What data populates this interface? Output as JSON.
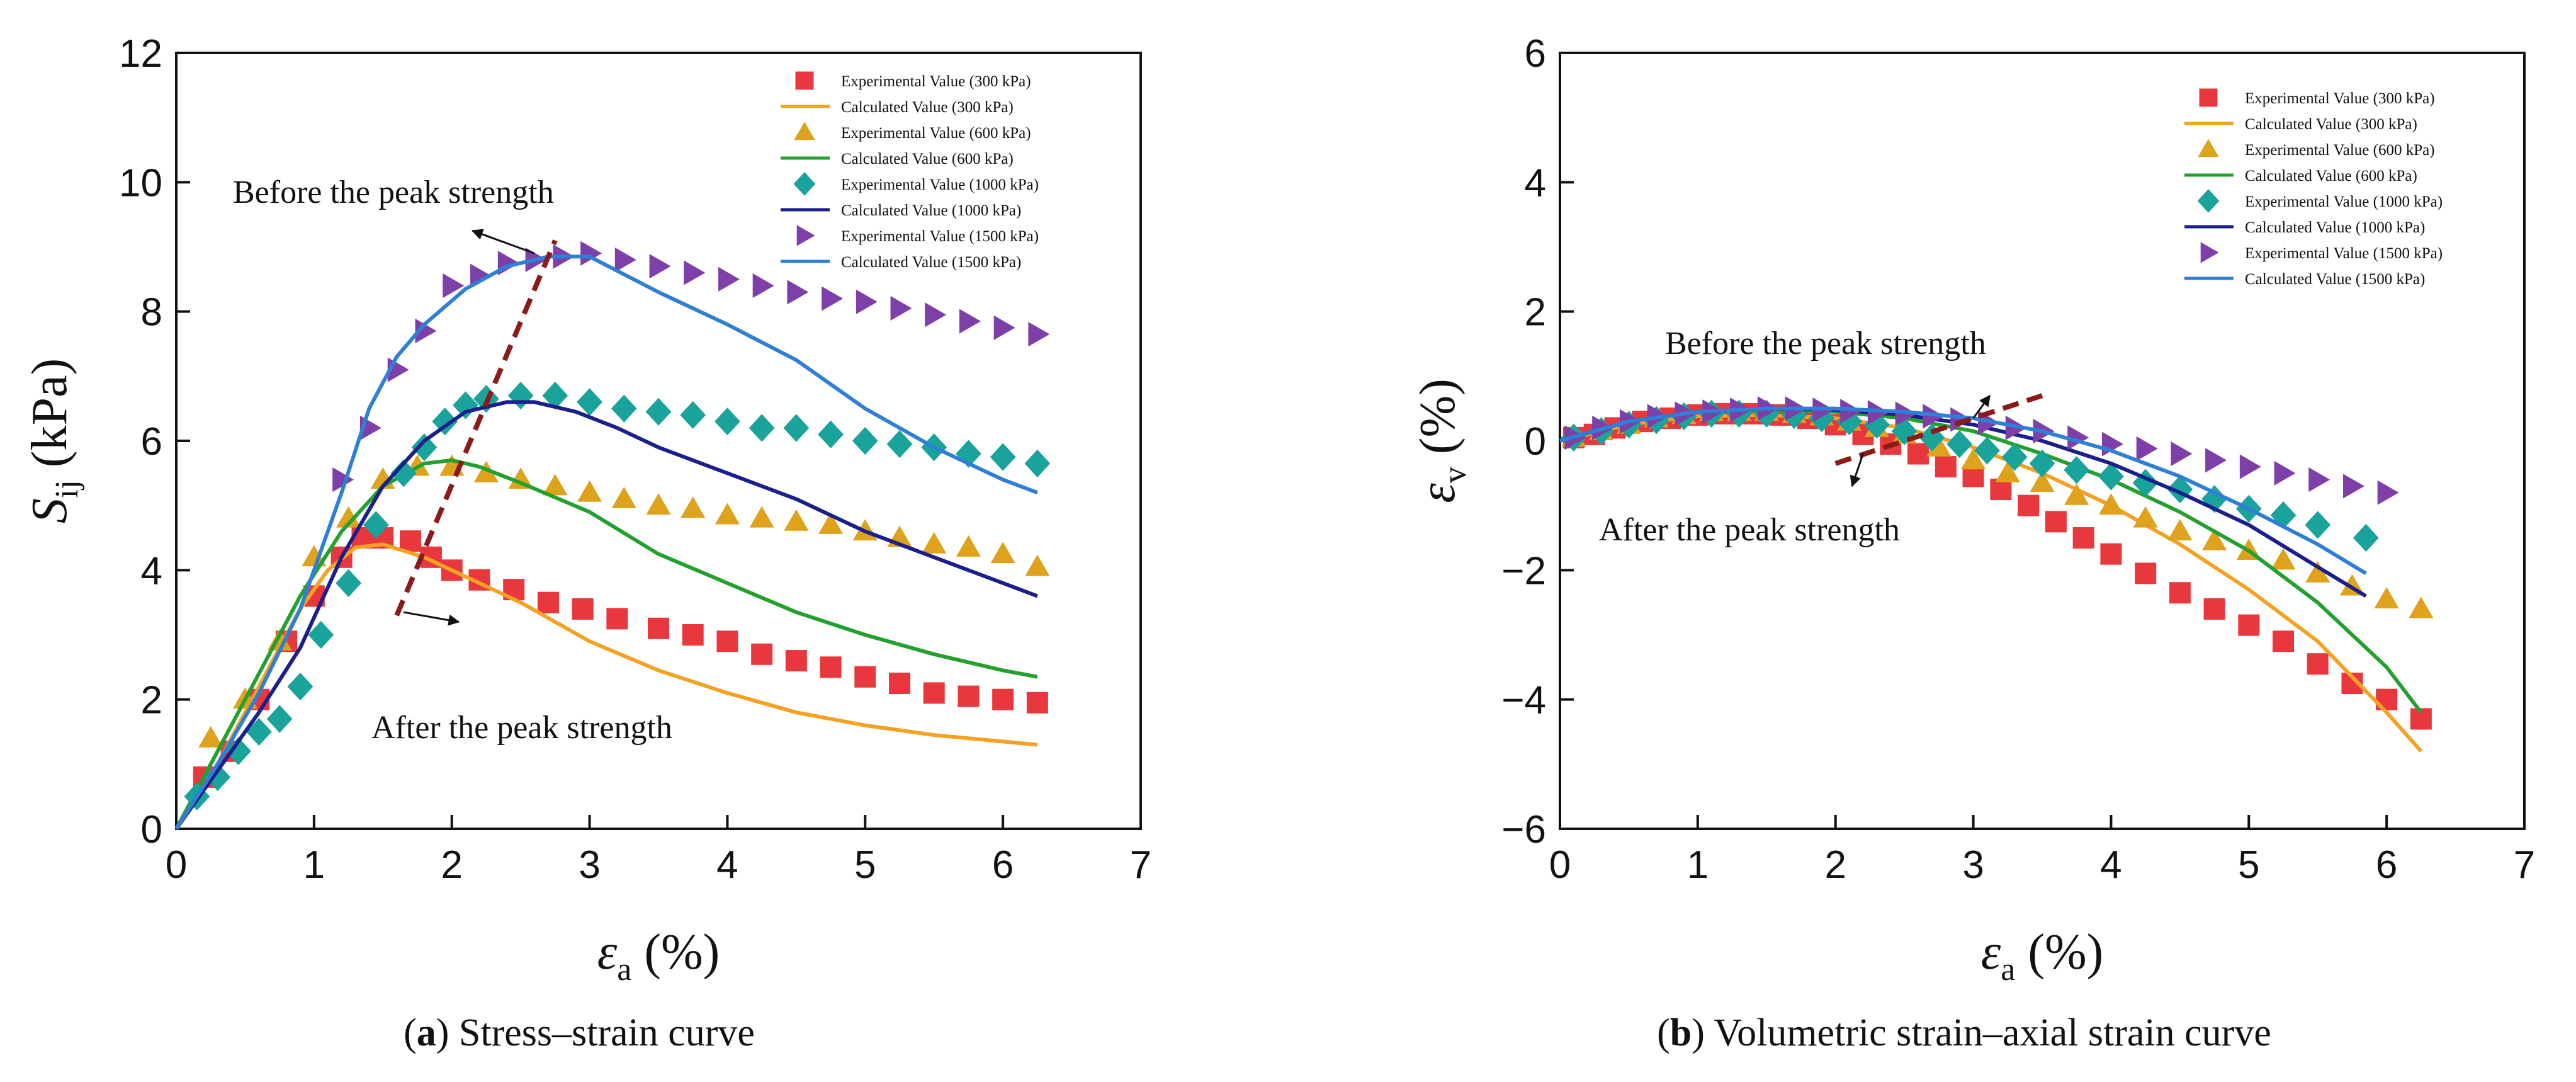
{
  "figure_captions": {
    "a_letter": "a",
    "a_text": " Stress–strain curve",
    "b_letter": "b",
    "b_text": " Volumetric strain–axial strain curve"
  },
  "chart_data": [
    {
      "id": "a",
      "type": "scatter",
      "title": "",
      "ylabel_main": "S",
      "ylabel_sub": "ij",
      "ylabel_unit": " (kPa)",
      "xlabel_main": "ε",
      "xlabel_sub": "a",
      "xlabel_unit": " (%)",
      "xlim": [
        0,
        7
      ],
      "ylim": [
        0,
        12
      ],
      "xticks": [
        0,
        1,
        2,
        3,
        4,
        5,
        6,
        7
      ],
      "yticks": [
        0,
        2,
        4,
        6,
        8,
        10,
        12
      ],
      "annotations": {
        "before": "Before the peak strength",
        "after": "After the peak strength"
      },
      "peak_line": [
        [
          1.6,
          3.3
        ],
        [
          2.75,
          9.1
        ]
      ],
      "series": [
        {
          "name": "Experimental Value (300 kPa)",
          "kind": "marker",
          "marker": "square",
          "color": "#e8383d",
          "x": [
            0.2,
            0.4,
            0.6,
            0.8,
            1.0,
            1.2,
            1.35,
            1.5,
            1.7,
            1.85,
            2.0,
            2.2,
            2.45,
            2.7,
            2.95,
            3.2,
            3.5,
            3.75,
            4.0,
            4.25,
            4.5,
            4.75,
            5.0,
            5.25,
            5.5,
            5.75,
            6.0,
            6.25
          ],
          "y": [
            0.8,
            1.2,
            2.0,
            2.9,
            3.6,
            4.2,
            4.5,
            4.5,
            4.45,
            4.2,
            4.0,
            3.85,
            3.7,
            3.5,
            3.4,
            3.25,
            3.1,
            3.0,
            2.9,
            2.7,
            2.6,
            2.5,
            2.35,
            2.25,
            2.1,
            2.05,
            2.0,
            1.95
          ]
        },
        {
          "name": "Calculated Value  (300 kPa)",
          "kind": "line",
          "color": "#f5a122",
          "x": [
            0,
            0.3,
            0.6,
            0.9,
            1.1,
            1.3,
            1.5,
            1.8,
            2.1,
            2.5,
            3.0,
            3.5,
            4.0,
            4.5,
            5.0,
            5.5,
            6.0,
            6.25
          ],
          "y": [
            0,
            1.0,
            2.2,
            3.4,
            4.0,
            4.35,
            4.4,
            4.2,
            3.9,
            3.5,
            2.9,
            2.45,
            2.1,
            1.8,
            1.6,
            1.45,
            1.35,
            1.3
          ]
        },
        {
          "name": "Experimental Value (600 kPa)",
          "kind": "marker",
          "marker": "triangle",
          "color": "#dea21c",
          "x": [
            0.25,
            0.5,
            0.75,
            1.0,
            1.25,
            1.5,
            1.75,
            2.0,
            2.25,
            2.5,
            2.75,
            3.0,
            3.25,
            3.5,
            3.75,
            4.0,
            4.25,
            4.5,
            4.75,
            5.0,
            5.25,
            5.5,
            5.75,
            6.0,
            6.25
          ],
          "y": [
            1.4,
            2.0,
            2.9,
            4.2,
            4.8,
            5.4,
            5.6,
            5.6,
            5.5,
            5.4,
            5.3,
            5.2,
            5.1,
            5.0,
            4.95,
            4.85,
            4.8,
            4.75,
            4.7,
            4.6,
            4.5,
            4.4,
            4.35,
            4.25,
            4.05
          ]
        },
        {
          "name": "Calculated Value (600 kPa)",
          "kind": "line",
          "color": "#22a12e",
          "x": [
            0,
            0.3,
            0.6,
            0.9,
            1.2,
            1.5,
            1.8,
            2.0,
            2.2,
            2.5,
            3.0,
            3.5,
            4.0,
            4.5,
            5.0,
            5.5,
            6.0,
            6.25
          ],
          "y": [
            0,
            1.2,
            2.4,
            3.6,
            4.6,
            5.3,
            5.65,
            5.7,
            5.6,
            5.35,
            4.9,
            4.25,
            3.8,
            3.35,
            3.0,
            2.7,
            2.45,
            2.35
          ]
        },
        {
          "name": "Experimental Value (1000 kPa)",
          "kind": "marker",
          "marker": "diamond",
          "color": "#1aa39b",
          "x": [
            0.15,
            0.3,
            0.45,
            0.6,
            0.75,
            0.9,
            1.05,
            1.25,
            1.45,
            1.65,
            1.8,
            1.95,
            2.1,
            2.25,
            2.5,
            2.75,
            3.0,
            3.25,
            3.5,
            3.75,
            4.0,
            4.25,
            4.5,
            4.75,
            5.0,
            5.25,
            5.5,
            5.75,
            6.0,
            6.25
          ],
          "y": [
            0.5,
            0.8,
            1.2,
            1.5,
            1.7,
            2.2,
            3.0,
            3.8,
            4.7,
            5.5,
            5.9,
            6.3,
            6.55,
            6.65,
            6.7,
            6.7,
            6.6,
            6.5,
            6.45,
            6.4,
            6.3,
            6.2,
            6.2,
            6.1,
            6.0,
            5.95,
            5.9,
            5.8,
            5.75,
            5.65
          ]
        },
        {
          "name": "Calculated Value (1000 kPa)",
          "kind": "line",
          "color": "#1b1f8c",
          "x": [
            0,
            0.3,
            0.6,
            0.9,
            1.2,
            1.5,
            1.8,
            2.1,
            2.4,
            2.6,
            2.9,
            3.2,
            3.5,
            4.0,
            4.5,
            5.0,
            5.5,
            6.0,
            6.25
          ],
          "y": [
            0,
            0.9,
            1.8,
            2.8,
            4.2,
            5.3,
            6.0,
            6.45,
            6.6,
            6.6,
            6.45,
            6.2,
            5.9,
            5.5,
            5.1,
            4.6,
            4.2,
            3.8,
            3.6
          ]
        },
        {
          "name": "Experimental Value  (1500 kPa)",
          "kind": "marker",
          "marker": "triangle-right",
          "color": "#7e3fa8",
          "x": [
            1.2,
            1.4,
            1.6,
            1.8,
            2.0,
            2.2,
            2.4,
            2.6,
            2.8,
            3.0,
            3.25,
            3.5,
            3.75,
            4.0,
            4.25,
            4.5,
            4.75,
            5.0,
            5.25,
            5.5,
            5.75,
            6.0,
            6.25
          ],
          "y": [
            5.4,
            6.2,
            7.1,
            7.7,
            8.4,
            8.55,
            8.75,
            8.8,
            8.85,
            8.9,
            8.8,
            8.7,
            8.6,
            8.5,
            8.4,
            8.3,
            8.2,
            8.15,
            8.05,
            7.95,
            7.85,
            7.75,
            7.65
          ]
        },
        {
          "name": "Calculated Value  (1500 kPa)",
          "kind": "line",
          "color": "#2f7fd6",
          "x": [
            0,
            0.3,
            0.6,
            0.9,
            1.2,
            1.4,
            1.6,
            1.8,
            2.1,
            2.4,
            2.7,
            3.0,
            3.5,
            4.0,
            4.5,
            5.0,
            5.5,
            6.0,
            6.25
          ],
          "y": [
            0,
            1.0,
            2.1,
            3.4,
            5.2,
            6.5,
            7.3,
            7.8,
            8.35,
            8.7,
            8.85,
            8.85,
            8.3,
            7.8,
            7.25,
            6.5,
            5.9,
            5.4,
            5.2
          ]
        }
      ]
    },
    {
      "id": "b",
      "type": "scatter",
      "title": "",
      "ylabel_main": "ε",
      "ylabel_sub": "v",
      "ylabel_unit": " (%)",
      "xlabel_main": "ε",
      "xlabel_sub": "a",
      "xlabel_unit": " (%)",
      "xlim": [
        0,
        7
      ],
      "ylim": [
        -6,
        6
      ],
      "xticks": [
        0,
        1,
        2,
        3,
        4,
        5,
        6,
        7
      ],
      "yticks": [
        -6,
        -4,
        -2,
        0,
        2,
        4,
        6
      ],
      "annotations": {
        "before": "Before the peak strength",
        "after": "After the peak strength"
      },
      "peak_line": [
        [
          2.0,
          -0.35
        ],
        [
          3.5,
          0.7
        ]
      ],
      "series": [
        {
          "name": "Experimental Value (300 kPa)",
          "kind": "marker",
          "marker": "square",
          "color": "#e8383d",
          "x": [
            0.1,
            0.25,
            0.4,
            0.6,
            0.8,
            1.0,
            1.2,
            1.4,
            1.6,
            1.8,
            2.0,
            2.2,
            2.4,
            2.6,
            2.8,
            3.0,
            3.2,
            3.4,
            3.6,
            3.8,
            4.0,
            4.25,
            4.5,
            4.75,
            5.0,
            5.25,
            5.5,
            5.75,
            6.0,
            6.25
          ],
          "y": [
            0.05,
            0.1,
            0.2,
            0.3,
            0.35,
            0.4,
            0.42,
            0.42,
            0.4,
            0.35,
            0.25,
            0.1,
            -0.05,
            -0.2,
            -0.4,
            -0.55,
            -0.75,
            -1.0,
            -1.25,
            -1.5,
            -1.75,
            -2.05,
            -2.35,
            -2.6,
            -2.85,
            -3.1,
            -3.45,
            -3.75,
            -4.0,
            -4.3
          ]
        },
        {
          "name": "Calculated Value (300 kPa)",
          "kind": "line",
          "color": "#f5a122",
          "x": [
            0,
            0.5,
            1.0,
            1.5,
            2.0,
            2.5,
            3.0,
            3.5,
            4.0,
            4.5,
            5.0,
            5.5,
            6.0,
            6.25
          ],
          "y": [
            0,
            0.25,
            0.38,
            0.4,
            0.35,
            0.2,
            -0.1,
            -0.5,
            -1.0,
            -1.6,
            -2.3,
            -3.1,
            -4.2,
            -4.8
          ]
        },
        {
          "name": "Experimental Value (600 kPa)",
          "kind": "marker",
          "marker": "triangle",
          "color": "#dea21c",
          "x": [
            0.1,
            0.3,
            0.5,
            0.7,
            0.9,
            1.1,
            1.3,
            1.5,
            1.7,
            1.9,
            2.1,
            2.3,
            2.5,
            2.75,
            3.0,
            3.25,
            3.5,
            3.75,
            4.0,
            4.25,
            4.5,
            4.75,
            5.0,
            5.25,
            5.5,
            5.75,
            6.0,
            6.25
          ],
          "y": [
            0.05,
            0.15,
            0.25,
            0.35,
            0.4,
            0.45,
            0.45,
            0.45,
            0.42,
            0.38,
            0.3,
            0.2,
            0.1,
            -0.1,
            -0.3,
            -0.5,
            -0.65,
            -0.85,
            -1.0,
            -1.2,
            -1.4,
            -1.55,
            -1.7,
            -1.85,
            -2.05,
            -2.25,
            -2.45,
            -2.6
          ]
        },
        {
          "name": "Calculated Value (600 kPa)",
          "kind": "line",
          "color": "#22a12e",
          "x": [
            0,
            0.5,
            1.0,
            1.5,
            2.0,
            2.5,
            3.0,
            3.5,
            4.0,
            4.5,
            5.0,
            5.5,
            6.0,
            6.25
          ],
          "y": [
            0,
            0.3,
            0.45,
            0.48,
            0.45,
            0.35,
            0.15,
            -0.2,
            -0.6,
            -1.1,
            -1.7,
            -2.5,
            -3.5,
            -4.2
          ]
        },
        {
          "name": "Experimental Value (1000 kPa)",
          "kind": "marker",
          "marker": "diamond",
          "color": "#1aa39b",
          "x": [
            0.1,
            0.3,
            0.5,
            0.7,
            0.9,
            1.1,
            1.3,
            1.5,
            1.7,
            1.9,
            2.1,
            2.3,
            2.5,
            2.7,
            2.9,
            3.1,
            3.3,
            3.5,
            3.75,
            4.0,
            4.25,
            4.5,
            4.75,
            5.0,
            5.25,
            5.5,
            5.85
          ],
          "y": [
            0.05,
            0.15,
            0.25,
            0.32,
            0.38,
            0.42,
            0.42,
            0.42,
            0.4,
            0.35,
            0.3,
            0.25,
            0.15,
            0.05,
            -0.05,
            -0.15,
            -0.25,
            -0.35,
            -0.45,
            -0.55,
            -0.65,
            -0.75,
            -0.9,
            -1.05,
            -1.15,
            -1.3,
            -1.5
          ]
        },
        {
          "name": "Calculated Value (1000 kPa)",
          "kind": "line",
          "color": "#1b1f8c",
          "x": [
            0,
            0.5,
            1.0,
            1.5,
            2.0,
            2.5,
            3.0,
            3.5,
            4.0,
            4.5,
            5.0,
            5.5,
            5.85
          ],
          "y": [
            0,
            0.3,
            0.45,
            0.5,
            0.48,
            0.4,
            0.25,
            0.0,
            -0.35,
            -0.8,
            -1.3,
            -1.95,
            -2.4
          ]
        },
        {
          "name": "Experimental Value (1500 kPa)",
          "kind": "marker",
          "marker": "triangle-right",
          "color": "#7e3fa8",
          "x": [
            0.1,
            0.3,
            0.5,
            0.7,
            0.9,
            1.1,
            1.3,
            1.5,
            1.7,
            1.9,
            2.1,
            2.3,
            2.5,
            2.7,
            2.9,
            3.1,
            3.3,
            3.5,
            3.75,
            4.0,
            4.25,
            4.5,
            4.75,
            5.0,
            5.25,
            5.5,
            5.75,
            6.0
          ],
          "y": [
            0.05,
            0.2,
            0.3,
            0.38,
            0.42,
            0.45,
            0.48,
            0.5,
            0.5,
            0.48,
            0.46,
            0.44,
            0.42,
            0.38,
            0.33,
            0.28,
            0.2,
            0.15,
            0.05,
            -0.05,
            -0.12,
            -0.2,
            -0.3,
            -0.4,
            -0.5,
            -0.6,
            -0.7,
            -0.8
          ]
        },
        {
          "name": "Calculated Value  (1500 kPa)",
          "kind": "line",
          "color": "#2f7fd6",
          "x": [
            0,
            0.5,
            1.0,
            1.5,
            2.0,
            2.5,
            3.0,
            3.5,
            4.0,
            4.5,
            5.0,
            5.5,
            5.85
          ],
          "y": [
            0,
            0.3,
            0.45,
            0.5,
            0.5,
            0.45,
            0.35,
            0.15,
            -0.15,
            -0.55,
            -1.05,
            -1.6,
            -2.05
          ]
        }
      ]
    }
  ]
}
